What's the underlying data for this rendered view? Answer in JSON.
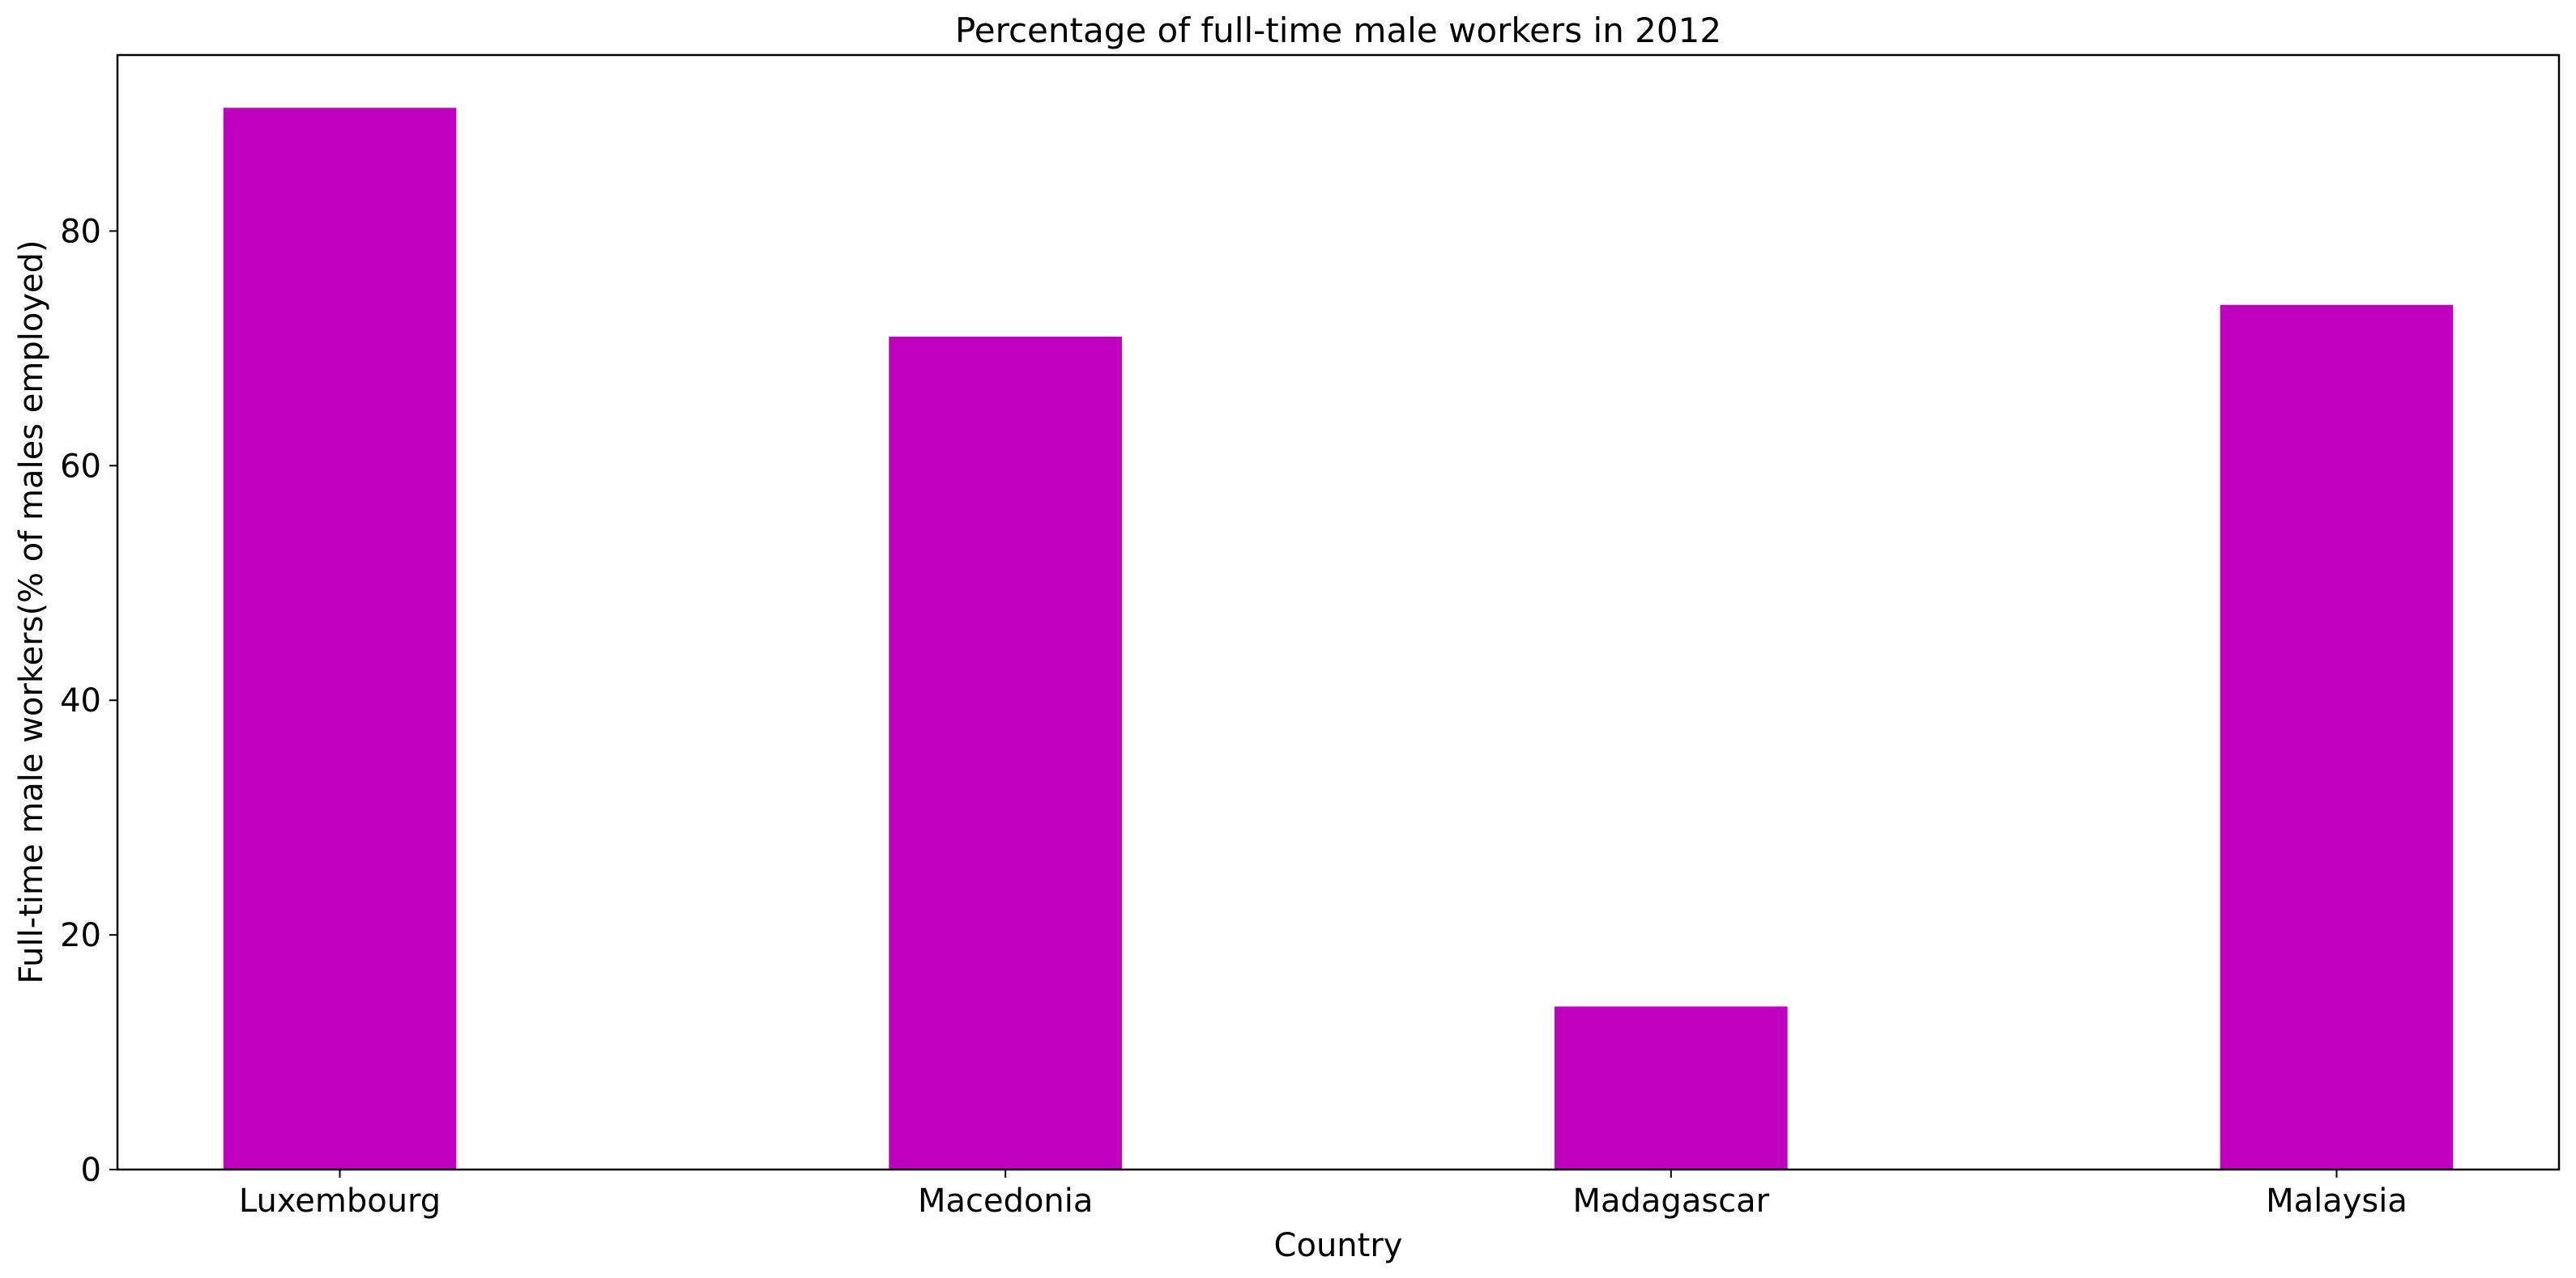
{
  "chart_data": {
    "type": "bar",
    "title": "Percentage of full-time male workers in 2012",
    "xlabel": "Country",
    "ylabel": "Full-time male workers(% of males employed)",
    "categories": [
      "Luxembourg",
      "Macedonia",
      "Madagascar",
      "Malaysia"
    ],
    "values": [
      90.5,
      71.0,
      13.9,
      73.7
    ],
    "ylim": [
      0,
      95
    ],
    "yticks": [
      0,
      20,
      40,
      60,
      80
    ],
    "grid": false,
    "legend": "none",
    "bar_color": "#bf00bf"
  }
}
